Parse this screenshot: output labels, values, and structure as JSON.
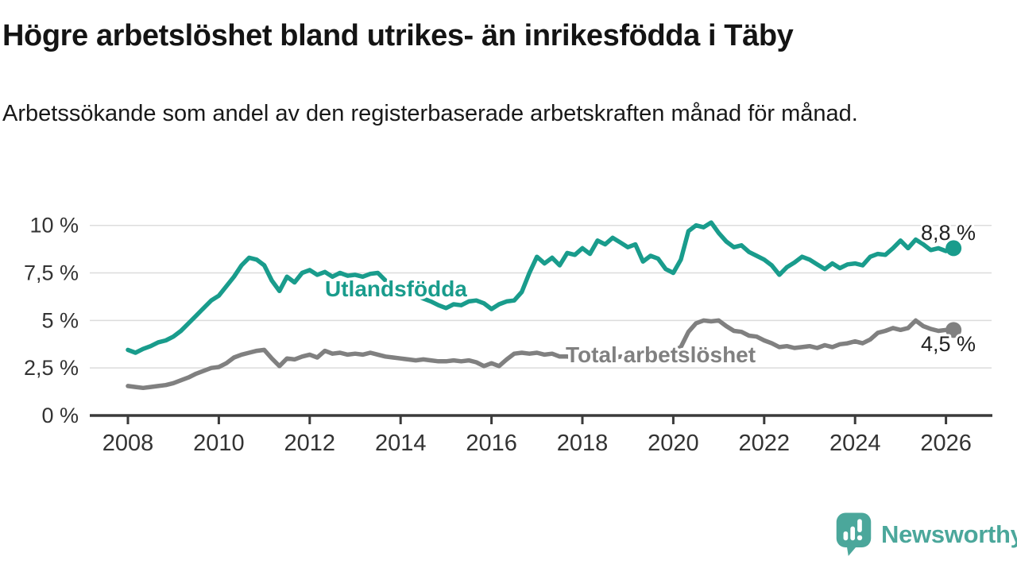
{
  "chart_data": {
    "type": "line",
    "title": "Högre arbetslöshet bland utrikes- än inrikesfödda i Täby",
    "subtitle": "Arbetssökande som andel av den registerbaserade arbetskraften månad för månad.",
    "x_start_year": 2008,
    "points_per_year": 6,
    "x_end_decimal_year": 2026.17,
    "x_tick_labels": [
      "2008",
      "2010",
      "2012",
      "2014",
      "2016",
      "2018",
      "2020",
      "2022",
      "2024",
      "2026"
    ],
    "y_ticks": [
      0,
      2.5,
      5,
      7.5,
      10
    ],
    "y_tick_labels": [
      "0 %",
      "2,5 %",
      "5 %",
      "7,5 %",
      "10 %"
    ],
    "ylim": [
      0,
      10.5
    ],
    "grid": "horizontal",
    "legend_position": "inline-labels",
    "series": [
      {
        "name": "Utlandsfödda",
        "color": "#199c8c",
        "end_label": "8,8 %",
        "end_value": 8.8,
        "values": [
          3.45,
          3.3,
          3.5,
          3.65,
          3.85,
          3.95,
          4.15,
          4.45,
          4.85,
          5.25,
          5.65,
          6.05,
          6.3,
          6.8,
          7.3,
          7.9,
          8.3,
          8.2,
          7.9,
          7.1,
          6.55,
          7.3,
          7.0,
          7.5,
          7.65,
          7.4,
          7.55,
          7.3,
          7.5,
          7.35,
          7.4,
          7.3,
          7.45,
          7.5,
          7.1,
          6.9,
          6.7,
          6.5,
          6.35,
          6.15,
          6.0,
          5.8,
          5.65,
          5.85,
          5.8,
          6.0,
          6.05,
          5.9,
          5.6,
          5.85,
          6.0,
          6.05,
          6.5,
          7.5,
          8.35,
          8.0,
          8.3,
          7.9,
          8.55,
          8.45,
          8.8,
          8.5,
          9.2,
          9.0,
          9.35,
          9.1,
          8.85,
          9.0,
          8.1,
          8.4,
          8.25,
          7.7,
          7.5,
          8.2,
          9.7,
          10.0,
          9.9,
          10.15,
          9.6,
          9.15,
          8.85,
          8.95,
          8.6,
          8.4,
          8.2,
          7.9,
          7.4,
          7.8,
          8.05,
          8.35,
          8.2,
          7.95,
          7.7,
          8.0,
          7.75,
          7.95,
          8.0,
          7.9,
          8.35,
          8.5,
          8.45,
          8.8,
          9.2,
          8.8,
          9.25,
          9.0,
          8.7,
          8.8,
          8.65,
          8.8
        ]
      },
      {
        "name": "Total arbetslöshet",
        "color": "#808080",
        "end_label": "4,5 %",
        "end_value": 4.5,
        "values": [
          1.55,
          1.5,
          1.45,
          1.5,
          1.55,
          1.6,
          1.7,
          1.85,
          2.0,
          2.2,
          2.35,
          2.5,
          2.55,
          2.75,
          3.05,
          3.2,
          3.3,
          3.4,
          3.45,
          3.0,
          2.6,
          3.0,
          2.95,
          3.1,
          3.2,
          3.05,
          3.4,
          3.25,
          3.3,
          3.2,
          3.25,
          3.2,
          3.3,
          3.2,
          3.1,
          3.05,
          3.0,
          2.95,
          2.9,
          2.95,
          2.9,
          2.85,
          2.85,
          2.9,
          2.85,
          2.9,
          2.8,
          2.6,
          2.75,
          2.6,
          2.95,
          3.25,
          3.3,
          3.25,
          3.3,
          3.2,
          3.25,
          3.1,
          3.1,
          3.05,
          3.05,
          2.95,
          3.05,
          2.95,
          3.0,
          3.1,
          3.15,
          3.2,
          3.15,
          3.25,
          3.3,
          3.35,
          3.4,
          3.6,
          4.4,
          4.85,
          5.0,
          4.95,
          5.0,
          4.7,
          4.45,
          4.4,
          4.2,
          4.15,
          3.95,
          3.8,
          3.6,
          3.65,
          3.55,
          3.6,
          3.65,
          3.55,
          3.7,
          3.6,
          3.75,
          3.8,
          3.9,
          3.8,
          4.0,
          4.35,
          4.45,
          4.6,
          4.5,
          4.6,
          5.0,
          4.7,
          4.55,
          4.45,
          4.5,
          4.5
        ]
      }
    ]
  },
  "footer": {
    "brand": "Newsworthy",
    "logo_color": "#4BA79B"
  }
}
